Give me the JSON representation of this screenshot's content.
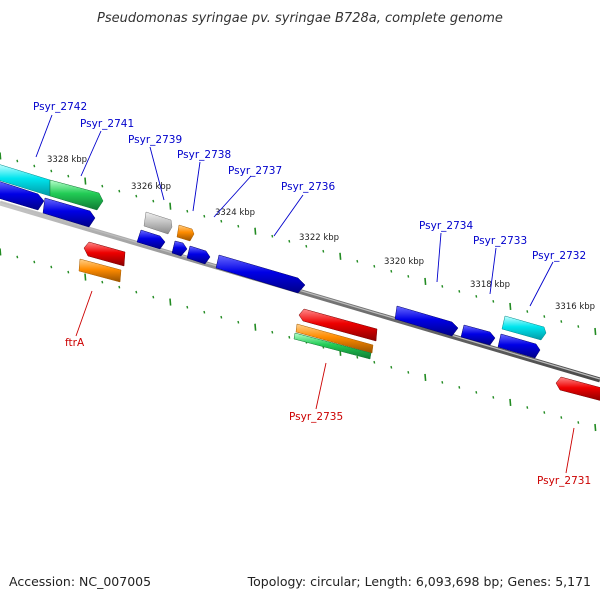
{
  "title": "Pseudomonas syringae pv. syringae B728a, complete genome",
  "footer": {
    "accession": "Accession: NC_007005",
    "topology": "Topology: circular; Length: 6,093,698 bp; Genes: 5,171"
  },
  "colors": {
    "backbone": "#808080",
    "tick": "#228b22",
    "blue": "#0000e0",
    "cyan": "#00e5ee",
    "green": "#22cc55",
    "red": "#ee0000",
    "orange": "#ff8c00",
    "gray": "#c0c0c0",
    "forward_label": "#0000cc",
    "reverse_label": "#cc0000"
  },
  "kbp_labels": [
    "3328 kbp",
    "3326 kbp",
    "3324 kbp",
    "3322 kbp",
    "3320 kbp",
    "3318 kbp",
    "3316 kbp"
  ],
  "gene_labels": [
    "Psyr_2742",
    "Psyr_2741",
    "Psyr_2739",
    "Psyr_2738",
    "Psyr_2737",
    "Psyr_2736",
    "Psyr_2734",
    "Psyr_2733",
    "Psyr_2732",
    "ftrA",
    "Psyr_2735",
    "Psyr_2731"
  ]
}
